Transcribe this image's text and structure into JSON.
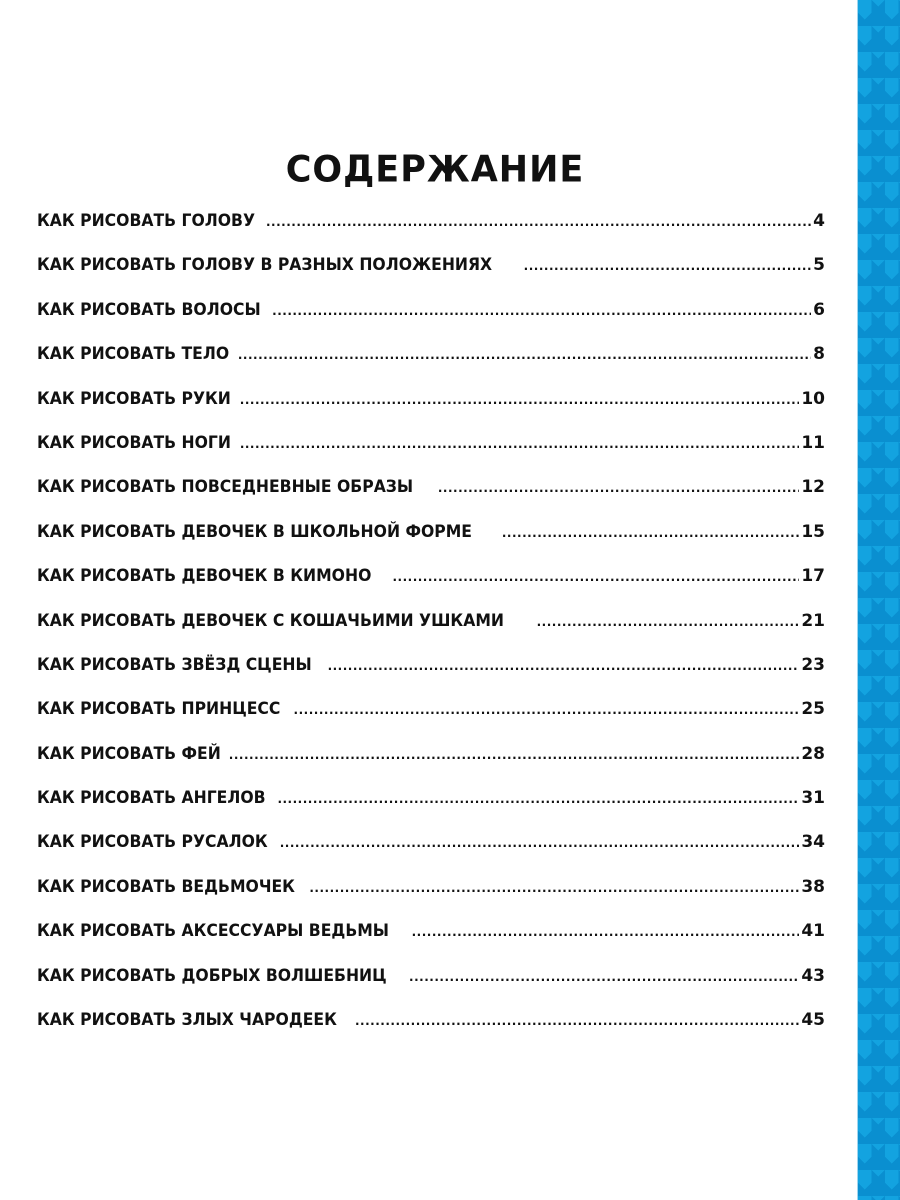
{
  "title": "СОДЕРЖАНИЕ",
  "accent_color": "#13a3e0",
  "entries": [
    {
      "label": "КАК РИСОВАТЬ ГОЛОВУ",
      "page": "4"
    },
    {
      "label": "КАК РИСОВАТЬ ГОЛОВУ В РАЗНЫХ ПОЛОЖЕНИЯХ",
      "page": "5"
    },
    {
      "label": "КАК РИСОВАТЬ ВОЛОСЫ",
      "page": "6"
    },
    {
      "label": "КАК РИСОВАТЬ ТЕЛО",
      "page": "8"
    },
    {
      "label": "КАК РИСОВАТЬ РУКИ",
      "page": "10"
    },
    {
      "label": "КАК РИСОВАТЬ НОГИ",
      "page": "11"
    },
    {
      "label": "КАК РИСОВАТЬ ПОВСЕДНЕВНЫЕ ОБРАЗЫ",
      "page": "12"
    },
    {
      "label": "КАК РИСОВАТЬ ДЕВОЧЕК В ШКОЛЬНОЙ ФОРМЕ",
      "page": "15"
    },
    {
      "label": "КАК РИСОВАТЬ ДЕВОЧЕК В КИМОНО",
      "page": "17"
    },
    {
      "label": "КАК РИСОВАТЬ ДЕВОЧЕК С КОШАЧЬИМИ УШКАМИ",
      "page": "21"
    },
    {
      "label": "КАК РИСОВАТЬ ЗВЁЗД СЦЕНЫ",
      "page": "23"
    },
    {
      "label": "КАК РИСОВАТЬ ПРИНЦЕСС",
      "page": "25"
    },
    {
      "label": "КАК РИСОВАТЬ ФЕЙ",
      "page": "28"
    },
    {
      "label": "КАК РИСОВАТЬ АНГЕЛОВ",
      "page": "31"
    },
    {
      "label": "КАК РИСОВАТЬ РУСАЛОК",
      "page": "34"
    },
    {
      "label": "КАК РИСОВАТЬ ВЕДЬМОЧЕК",
      "page": "38"
    },
    {
      "label": "КАК РИСОВАТЬ АКСЕССУАРЫ ВЕДЬМЫ",
      "page": "41"
    },
    {
      "label": "КАК РИСОВАТЬ ДОБРЫХ ВОЛШЕБНИЦ",
      "page": "43"
    },
    {
      "label": "КАК РИСОВАТЬ ЗЛЫХ ЧАРОДЕЕК",
      "page": "45"
    }
  ]
}
